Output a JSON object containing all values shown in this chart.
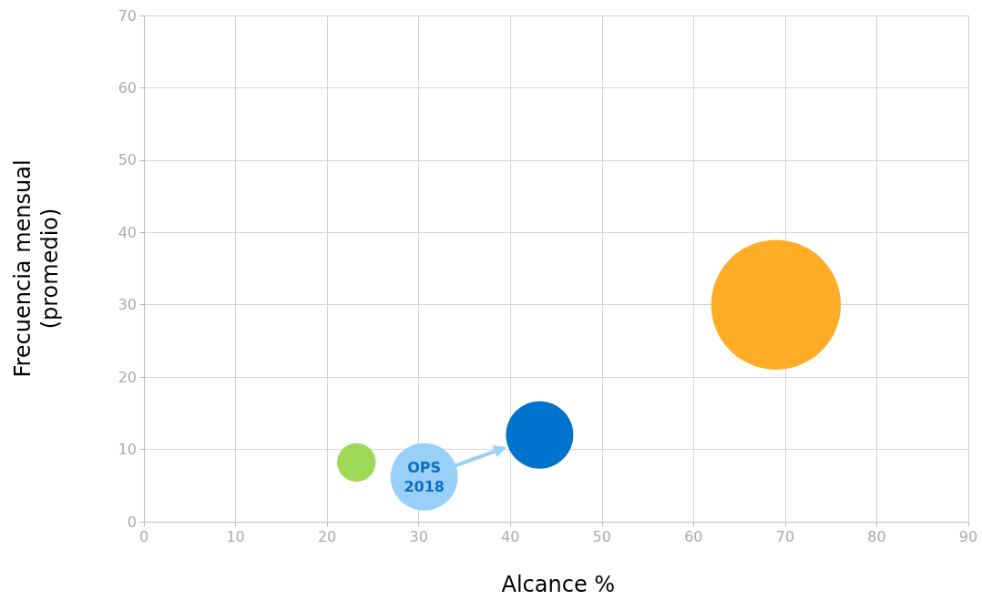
{
  "chart_data": {
    "type": "bubble",
    "xlabel": "Alcance %",
    "ylabel": "Frecuencia mensual\n(promedio)",
    "x": [
      23.2,
      30.6,
      43.2,
      69.0
    ],
    "values": [
      8.2,
      6.2,
      12.0,
      30.0
    ],
    "sizes": [
      0.088,
      0.27,
      0.27,
      1
    ],
    "colors": [
      "#9ed955",
      "#99d0f8",
      "#0073cc",
      "#ffad26"
    ],
    "xlim": [
      0,
      90
    ],
    "xticks": [
      0,
      10,
      20,
      30,
      40,
      50,
      60,
      70,
      80,
      90
    ],
    "ylim": [
      0,
      70
    ],
    "yticks": [
      0,
      10,
      20,
      30,
      40,
      50,
      60,
      70
    ],
    "grid": true,
    "annotations": [
      {
        "text": "OPS 2018",
        "x": 30.6,
        "y": 6.2
      }
    ]
  }
}
